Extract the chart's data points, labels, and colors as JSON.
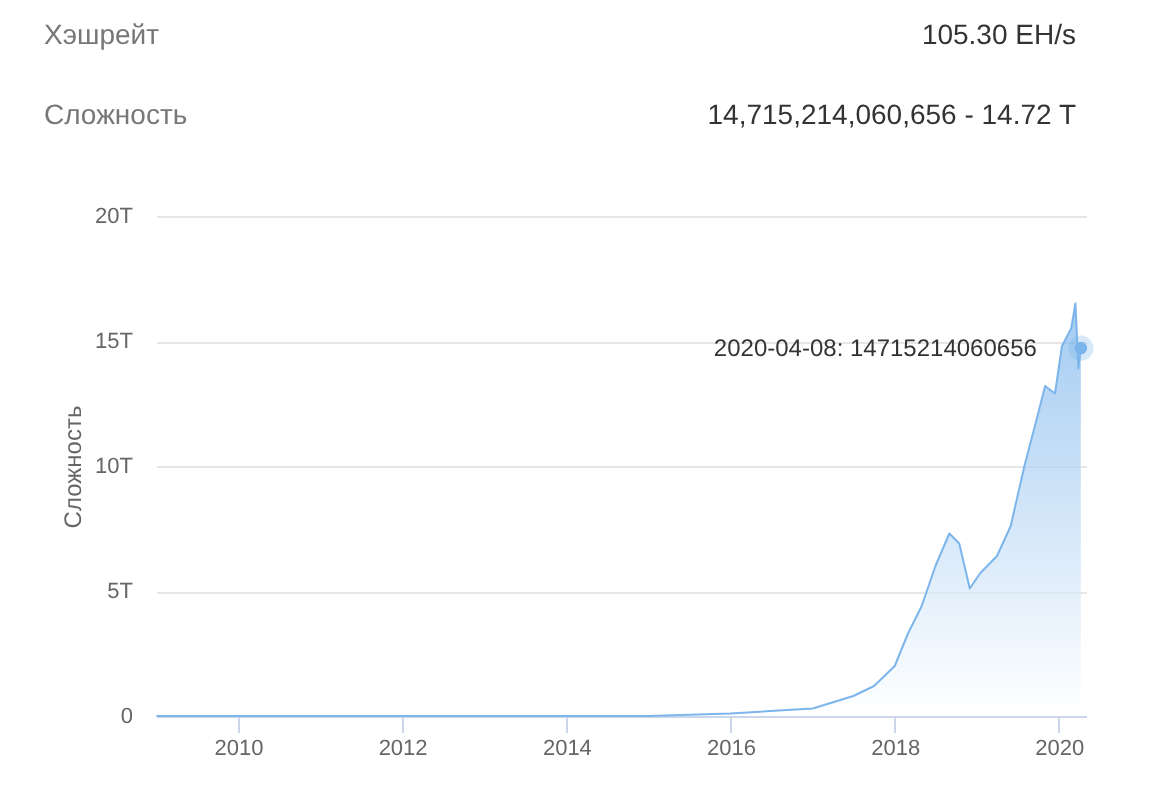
{
  "chart_data": {
    "type": "area",
    "ylabel": "Сложность",
    "x": [
      "2009-01-03",
      "2012-01-01",
      "2014-01-01",
      "2015-01-01",
      "2016-01-01",
      "2017-01-01",
      "2017-07-01",
      "2017-10-01",
      "2018-01-01",
      "2018-03-01",
      "2018-05-01",
      "2018-07-01",
      "2018-09-01",
      "2018-10-15",
      "2018-12-01",
      "2019-01-15",
      "2019-04-01",
      "2019-06-01",
      "2019-08-01",
      "2019-10-01",
      "2019-11-01",
      "2019-12-15",
      "2020-01-15",
      "2020-02-25",
      "2020-03-15",
      "2020-03-28",
      "2020-04-08"
    ],
    "series": [
      {
        "color": "#7cb5ec",
        "values": [
          0,
          0,
          0,
          0,
          100000000000,
          300000000000,
          800000000000,
          1200000000000,
          2000000000000,
          3300000000000,
          4400000000000,
          6000000000000,
          7300000000000,
          6900000000000,
          5100000000000,
          5700000000000,
          6400000000000,
          7600000000000,
          10000000000000,
          12100000000000,
          13200000000000,
          12900000000000,
          14800000000000,
          15500000000000,
          16500000000000,
          13900000000000,
          14715214060656
        ]
      }
    ],
    "xlim": [
      "2009-01-01",
      "2020-05-01"
    ],
    "xticks": [
      "2010",
      "2012",
      "2014",
      "2016",
      "2018",
      "2020"
    ],
    "ylim": [
      0,
      20000000000000
    ],
    "yticks": [
      0,
      {
        "value": 5000000000000,
        "label": "5T"
      },
      {
        "value": 10000000000000,
        "label": "10T"
      },
      {
        "value": 15000000000000,
        "label": "15T"
      },
      {
        "value": 20000000000000,
        "label": "20T"
      }
    ],
    "grid": "y",
    "annotations": [
      "Хэшрейт",
      "105.30 EH/s",
      "Сложность",
      "14,715,214,060,656 - 14.72 T",
      {
        "text": "2020-04-08: 14715214060656",
        "x": "2020-04-08",
        "y": 14715214060656
      }
    ]
  }
}
